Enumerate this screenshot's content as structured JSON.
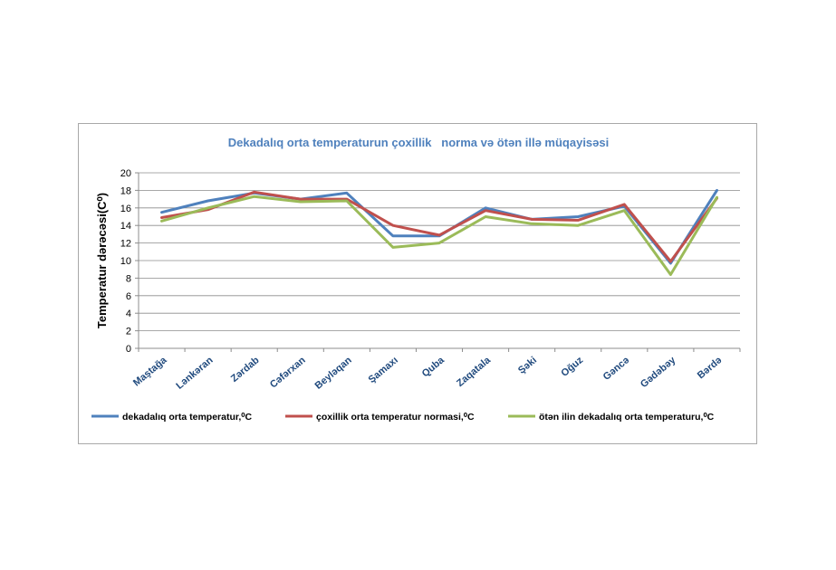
{
  "chart_data": {
    "type": "line",
    "title": "Dekadalıq orta temperaturun çoxillik   norma və ötən illə müqayisəsi",
    "xlabel": "",
    "ylabel": "Temperatur dərəcəsi(C⁰)",
    "ylim": [
      0,
      20
    ],
    "yticks": [
      0,
      2,
      4,
      6,
      8,
      10,
      12,
      14,
      16,
      18,
      20
    ],
    "grid": true,
    "legend_position": "bottom",
    "categories": [
      "Maştağa",
      "Lənkəran",
      "Zərdab",
      "Cəfərxan",
      "Beyləqan",
      "Şamaxı",
      "Quba",
      "Zaqatala",
      "Şəki",
      "Oğuz",
      "Gəncə",
      "Gədəbəy",
      "Bərdə"
    ],
    "series": [
      {
        "name": "dekadalıq orta temperatur,⁰C",
        "color": "#4f81bd",
        "values": [
          15.5,
          16.8,
          17.7,
          17.0,
          17.7,
          12.8,
          12.8,
          16.0,
          14.7,
          15.0,
          16.2,
          9.7,
          18.0
        ]
      },
      {
        "name": "çoxillik orta temperatur normasi,⁰C",
        "color": "#c0504d",
        "values": [
          14.9,
          15.8,
          17.8,
          17.0,
          17.0,
          14.0,
          12.9,
          15.7,
          14.7,
          14.6,
          16.4,
          9.9,
          17.1
        ]
      },
      {
        "name": "ötən ilin dekadalıq orta temperaturu,⁰C",
        "color": "#9bbb59",
        "values": [
          14.5,
          16.0,
          17.3,
          16.7,
          16.8,
          11.5,
          12.0,
          15.0,
          14.2,
          14.0,
          15.7,
          8.4,
          17.2
        ]
      }
    ]
  }
}
